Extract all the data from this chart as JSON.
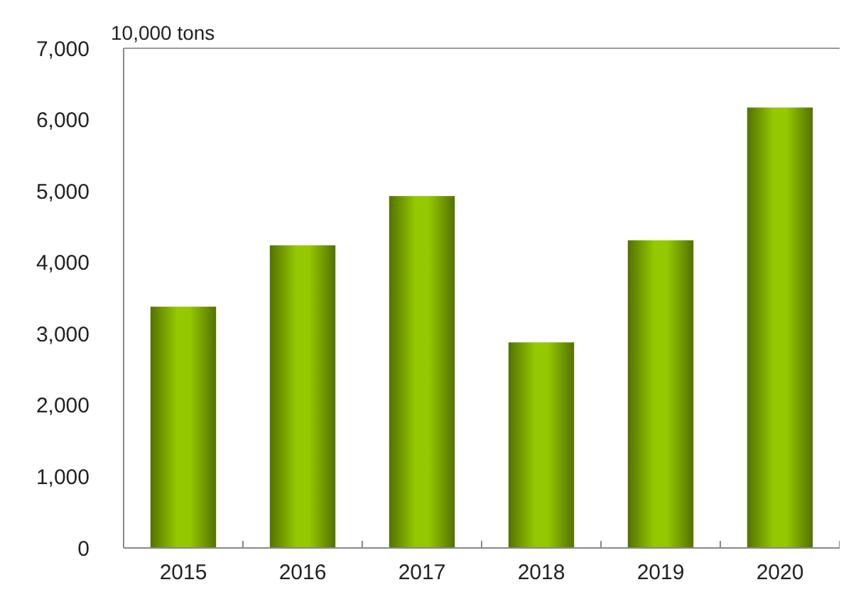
{
  "chart_data": {
    "type": "bar",
    "ylabel": "10,000 tons",
    "categories": [
      "2015",
      "2016",
      "2017",
      "2018",
      "2019",
      "2020"
    ],
    "values": [
      3380,
      4240,
      4930,
      2880,
      4310,
      6170
    ],
    "color": "#94c800",
    "ylim": [
      0,
      7000
    ],
    "yticks": [
      {
        "value": 0,
        "label": "0"
      },
      {
        "value": 1000,
        "label": "1,000"
      },
      {
        "value": 2000,
        "label": "2,000"
      },
      {
        "value": 3000,
        "label": "3,000"
      },
      {
        "value": 4000,
        "label": "4,000"
      },
      {
        "value": 5000,
        "label": "5,000"
      },
      {
        "value": 6000,
        "label": "6,000"
      },
      {
        "value": 7000,
        "label": "7,000"
      }
    ]
  }
}
